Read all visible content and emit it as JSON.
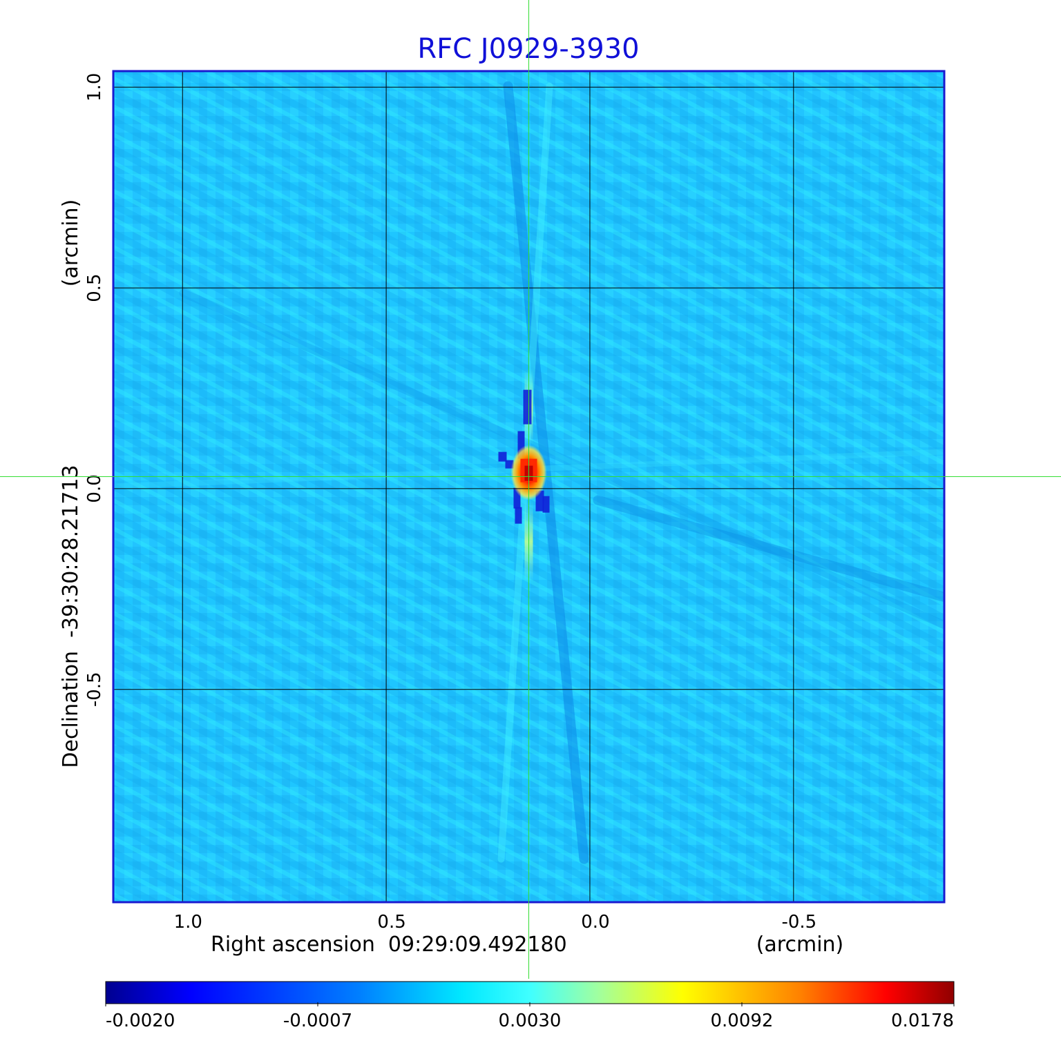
{
  "chart_data": {
    "type": "heatmap",
    "title": "RFC J0929-3930",
    "xlabel": "Right ascension  09:29:09.492180",
    "xunit": "(arcmin)",
    "ylabel": "Declination  -39:30:28.21713",
    "yunit": "(arcmin)",
    "xlim": [
      1.17,
      -0.87
    ],
    "ylim": [
      -1.03,
      1.04
    ],
    "x_ticks": [
      {
        "value": 1.0,
        "label": "1.0"
      },
      {
        "value": 0.5,
        "label": "0.5"
      },
      {
        "value": 0.0,
        "label": "0.0"
      },
      {
        "value": -0.5,
        "label": "-0.5"
      }
    ],
    "y_ticks": [
      {
        "value": 1.0,
        "label": "1.0"
      },
      {
        "value": 0.5,
        "label": "0.5"
      },
      {
        "value": 0.0,
        "label": "0.0"
      },
      {
        "value": -0.5,
        "label": "-0.5"
      }
    ],
    "grid": true,
    "crosshair": {
      "x": 0.15,
      "y": 0.03
    },
    "source_peak": {
      "x": 0.15,
      "y": 0.04,
      "value": 0.0178
    },
    "colorbar": {
      "colormap": "jet",
      "range": [
        -0.002,
        0.0178
      ],
      "tick_labels": [
        "-0.0020",
        "-0.0007",
        "0.0030",
        "0.0092",
        "0.0178"
      ]
    },
    "colors": {
      "title": "#1010d8",
      "frame": "#1a1ad0",
      "grid": "#000000",
      "crosshair": "#33dd33",
      "background_level": "#1ec8ff"
    }
  }
}
